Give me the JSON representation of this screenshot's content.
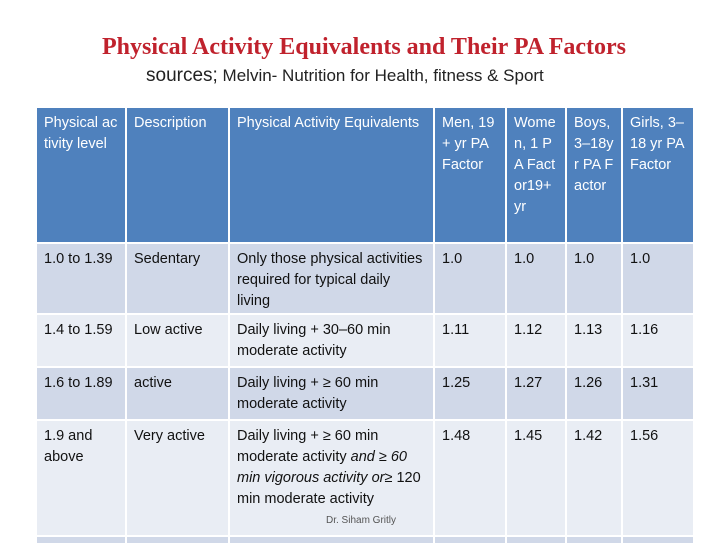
{
  "slide": {
    "title": "Physical Activity Equivalents and Their PA Factors",
    "subtitle_lead": "sources;",
    "subtitle_rest": "Melvin- Nutrition for Health, fitness & Sport",
    "caption": "Dr. Siham Gritly"
  },
  "table": {
    "headers": [
      "Physical activity level",
      "Description",
      "Physical Activity Equivalents",
      "Men, 19+ yr PA Factor",
      "Women, 1 PA Factor19+ yr",
      "Boys, 3–18yr PA Factor",
      "Girls, 3–18 yr PA Factor"
    ],
    "rows": [
      {
        "level": "1.0 to 1.39",
        "description": "Sedentary",
        "equivalents": "Only those physical activities required for typical daily living",
        "men": "1.0",
        "women": "1.0",
        "boys": "1.0",
        "girls": "1.0"
      },
      {
        "level": "1.4 to 1.59",
        "description": "Low active",
        "equivalents": "Daily living + 30–60 min moderate activity",
        "men": "1.11",
        "women": "1.12",
        "boys": "1.13",
        "girls": "1.16"
      },
      {
        "level": "1.6 to 1.89",
        "description": "active",
        "equivalents": "Daily living + ≥ 60 min moderate activity",
        "men": "1.25",
        "women": "1.27",
        "boys": "1.26",
        "girls": "1.31"
      },
      {
        "level": "1.9 and above",
        "description": "Very active",
        "equivalents_pre": "Daily living + ≥ 60 min moderate activity",
        "equivalents_italic1": "and ≥ 60 min vigorous activity or",
        "equivalents_post": "≥ 120 min moderate activity",
        "men": "1.48",
        "women": "1.45",
        "boys": "1.42",
        "girls": "1.56"
      }
    ]
  }
}
